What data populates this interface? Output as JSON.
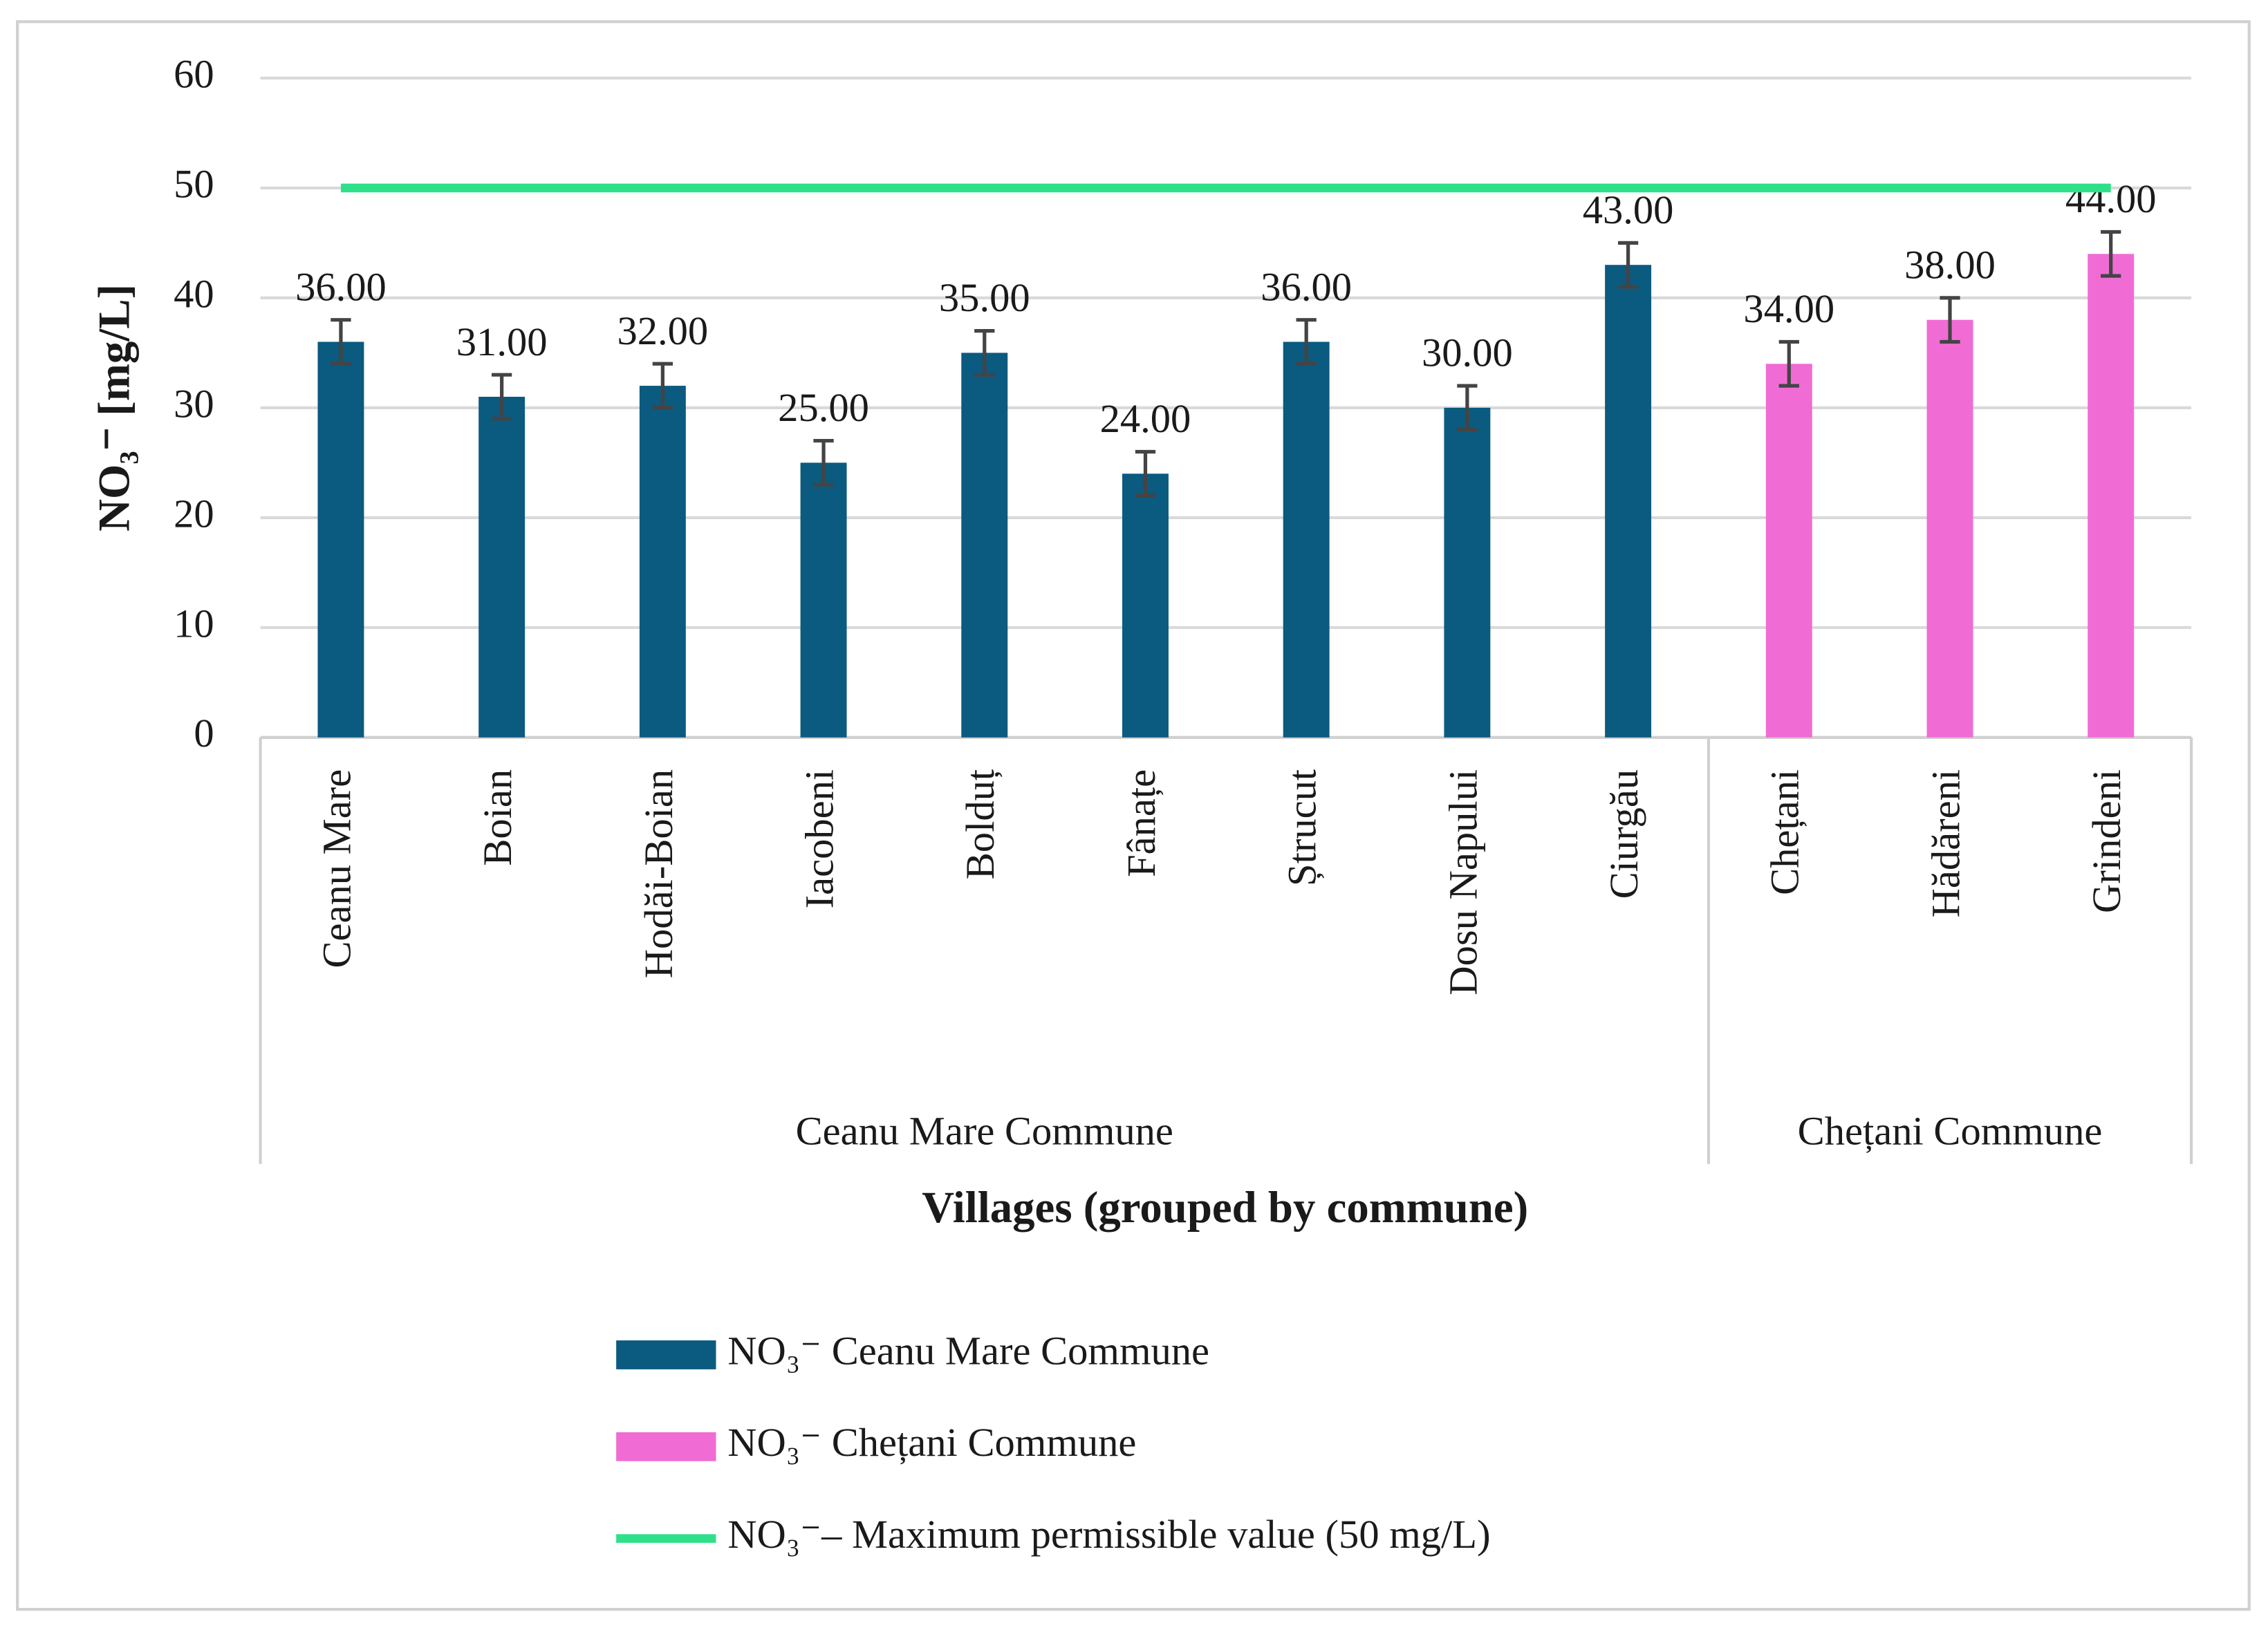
{
  "chart_data": {
    "type": "bar",
    "ylabel": "NO₃⁻ [mg/L]",
    "xlabel": "Villages (grouped by commune)",
    "categories": [
      "Ceanu Mare",
      "Boian",
      "Hodăi-Boian",
      "Iacobeni",
      "Bolduț",
      "Fânațe",
      "Ștrucut",
      "Dosu Napului",
      "Ciurgău",
      "Chețani",
      "Hădăreni",
      "Grindeni"
    ],
    "groups": [
      "Ceanu Mare Commune",
      "Chețani  Commune"
    ],
    "series": [
      {
        "name": "NO₃⁻ Ceanu Mare  Commune",
        "type": "bar",
        "color": "#0b5a80",
        "values": [
          36,
          31,
          32,
          25,
          35,
          24,
          36,
          30,
          43,
          null,
          null,
          null
        ],
        "value_labels": [
          "36.00",
          "31.00",
          "32.00",
          "25.00",
          "35.00",
          "24.00",
          "36.00",
          "30.00",
          "43.00",
          null,
          null,
          null
        ],
        "errors": [
          2,
          2,
          2,
          2,
          2,
          2,
          2,
          2,
          2,
          null,
          null,
          null
        ]
      },
      {
        "name": "NO₃⁻ Chețani  Commune",
        "type": "bar",
        "color": "#f06cd4",
        "values": [
          null,
          null,
          null,
          null,
          null,
          null,
          null,
          null,
          null,
          34,
          38,
          44
        ],
        "value_labels": [
          null,
          null,
          null,
          null,
          null,
          null,
          null,
          null,
          null,
          "34.00",
          "38.00",
          "44.00"
        ],
        "errors": [
          null,
          null,
          null,
          null,
          null,
          null,
          null,
          null,
          null,
          2,
          2,
          2
        ]
      },
      {
        "name": "NO₃⁻– Maximum permissible value (50 mg/L)",
        "type": "line",
        "color": "#2ee08a",
        "values": [
          50,
          50,
          50,
          50,
          50,
          50,
          50,
          50,
          50,
          50,
          50,
          50
        ]
      }
    ],
    "ylim": [
      0,
      60
    ],
    "yticks": [
      0,
      10,
      20,
      30,
      40,
      50,
      60
    ],
    "grid": true,
    "legend": "bottom"
  }
}
